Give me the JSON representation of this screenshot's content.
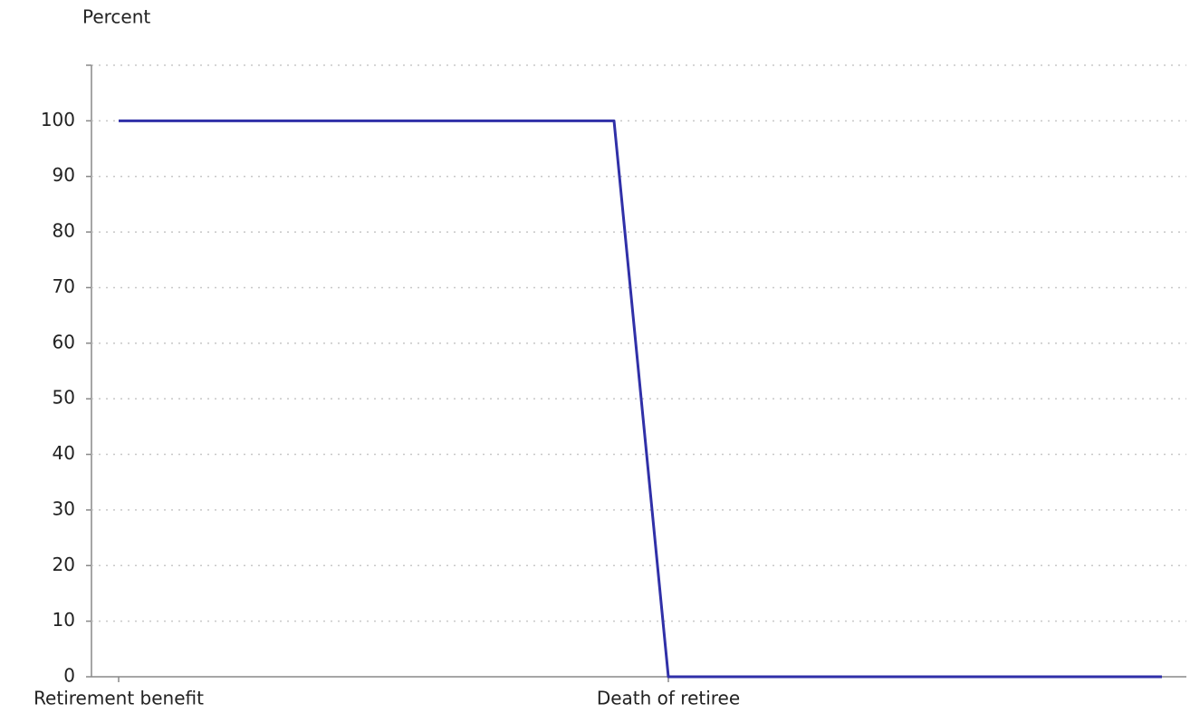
{
  "chart_data": {
    "type": "line",
    "y_axis_label": "Percent",
    "categories": [
      "Retirement benefit",
      null,
      "Death of retiree",
      null
    ],
    "series": [
      {
        "color": "#3030a8",
        "values": [
          100,
          100,
          0,
          0
        ]
      }
    ],
    "ylim": [
      0,
      110
    ],
    "yticks": [
      0,
      10,
      20,
      30,
      40,
      50,
      60,
      70,
      80,
      90,
      100
    ],
    "grid": true
  }
}
